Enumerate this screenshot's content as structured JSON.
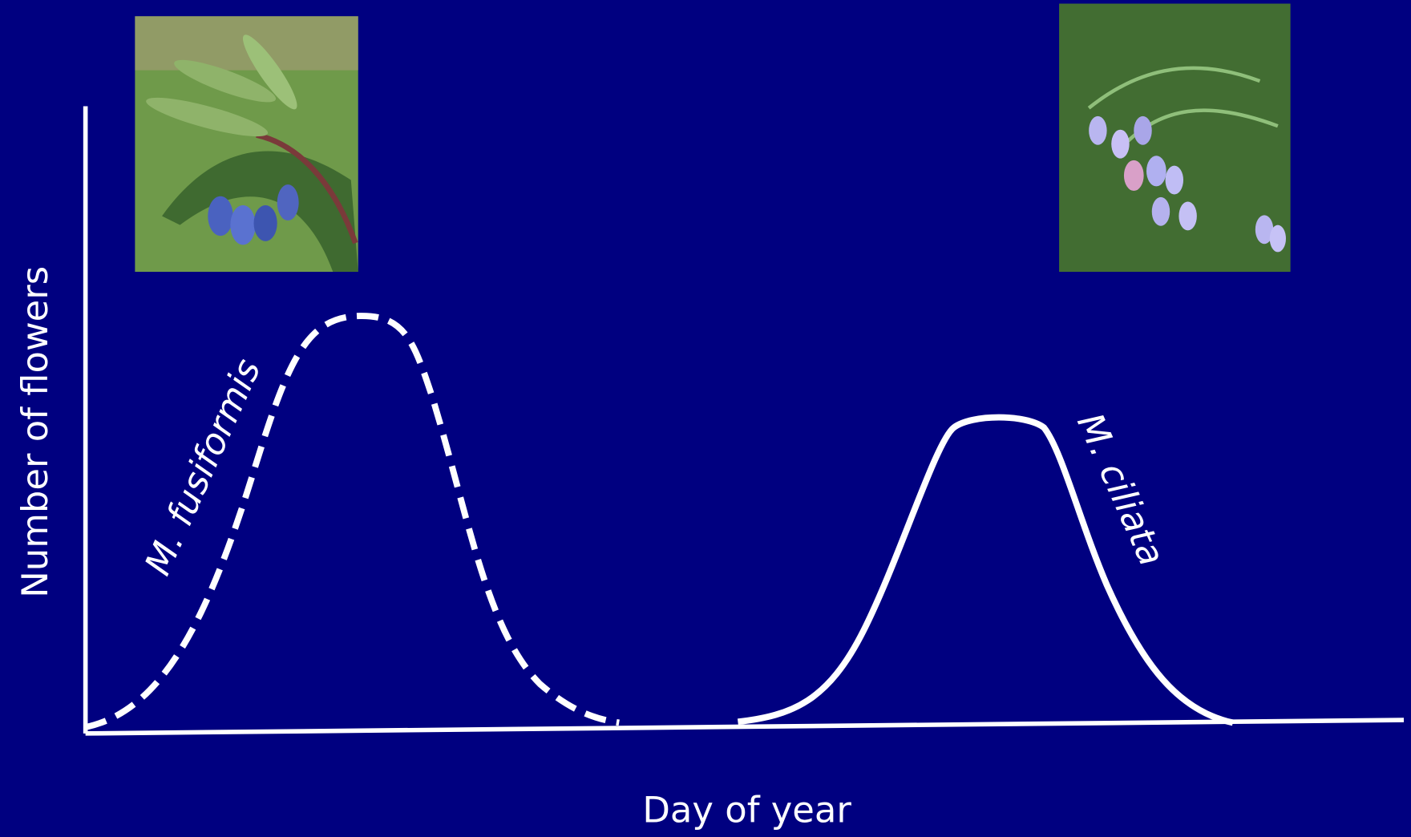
{
  "y_axis_label": "Number of flowers",
  "x_axis_label": "Day of year",
  "curves": [
    {
      "label": "M. fusiformis"
    },
    {
      "label": "M. ciliata"
    }
  ]
}
